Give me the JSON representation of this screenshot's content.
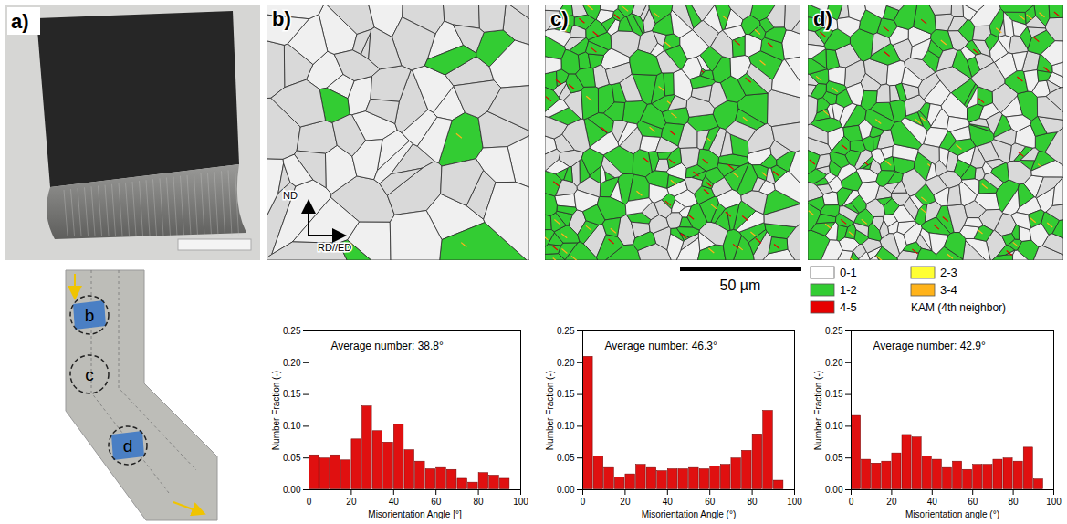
{
  "panel_labels": [
    "a)",
    "b)",
    "c)",
    "d)"
  ],
  "map_axes": {
    "vertical": "ND",
    "horizontal": "RD//ED"
  },
  "scale_bar": "50 µm",
  "kam_legend": {
    "title": "KAM (4th neighbor)",
    "entries": [
      {
        "label": "0-1",
        "color": "#ffffff"
      },
      {
        "label": "2-3",
        "color": "#ffff33"
      },
      {
        "label": "1-2",
        "color": "#33cc33"
      },
      {
        "label": "3-4",
        "color": "#ffb31a"
      },
      {
        "label": "4-5",
        "color": "#e60000"
      }
    ]
  },
  "schematic": {
    "locations": [
      "b",
      "c",
      "d"
    ]
  },
  "chart_data": [
    {
      "type": "histogram",
      "annotation": "Average number: 38.8°",
      "x_label": "Misorientation Angle [°]",
      "y_label": "Number Fraction (-)",
      "bins": [
        0,
        5,
        10,
        15,
        20,
        25,
        30,
        35,
        40,
        45,
        50,
        55,
        60,
        65,
        70,
        75,
        80,
        85,
        90,
        95
      ],
      "values": [
        0.055,
        0.05,
        0.055,
        0.047,
        0.08,
        0.132,
        0.093,
        0.075,
        0.103,
        0.063,
        0.045,
        0.033,
        0.035,
        0.032,
        0.018,
        0.012,
        0.027,
        0.023,
        0.018
      ],
      "color": "#e01010",
      "xlim": [
        0,
        100
      ],
      "xticks": [
        0,
        20,
        40,
        60,
        80,
        100
      ],
      "ylim": [
        0,
        0.25
      ],
      "yticks": [
        {
          "value": 0,
          "label": "0.00"
        },
        {
          "value": 0.05,
          "label": "0.05"
        },
        {
          "value": 0.1,
          "label": "0.10"
        },
        {
          "value": 0.15,
          "label": "0.15"
        },
        {
          "value": 0.2,
          "label": "0.20"
        },
        {
          "value": 0.25,
          "label": "0.25"
        }
      ]
    },
    {
      "type": "histogram",
      "annotation": "Average number: 46.3°",
      "x_label": "Misorientation Angle (°)",
      "y_label": "Number Fraction (-)",
      "bins": [
        0,
        5,
        10,
        15,
        20,
        25,
        30,
        35,
        40,
        45,
        50,
        55,
        60,
        65,
        70,
        75,
        80,
        85,
        90,
        95
      ],
      "values": [
        0.21,
        0.053,
        0.035,
        0.02,
        0.025,
        0.04,
        0.035,
        0.03,
        0.033,
        0.033,
        0.035,
        0.033,
        0.037,
        0.04,
        0.05,
        0.062,
        0.088,
        0.125,
        0.015
      ],
      "color": "#e01010",
      "xlim": [
        0,
        100
      ],
      "xticks": [
        0,
        20,
        40,
        60,
        80,
        100
      ],
      "ylim": [
        0,
        0.25
      ],
      "yticks": [
        {
          "value": 0,
          "label": "0.00"
        },
        {
          "value": 0.05,
          "label": "0.05"
        },
        {
          "value": 0.1,
          "label": "0.10"
        },
        {
          "value": 0.15,
          "label": "0.15"
        },
        {
          "value": 0.2,
          "label": "0.20"
        },
        {
          "value": 0.25,
          "label": "0.25"
        }
      ]
    },
    {
      "type": "histogram",
      "annotation": "Average number: 42.9°",
      "x_label": "Misorientation angle (°)",
      "y_label": "Number Fraction (-)",
      "bins": [
        0,
        5,
        10,
        15,
        20,
        25,
        30,
        35,
        40,
        45,
        50,
        55,
        60,
        65,
        70,
        75,
        80,
        85,
        90,
        95
      ],
      "values": [
        0.117,
        0.048,
        0.042,
        0.045,
        0.058,
        0.087,
        0.083,
        0.053,
        0.048,
        0.035,
        0.045,
        0.032,
        0.04,
        0.04,
        0.048,
        0.05,
        0.045,
        0.067,
        0.017
      ],
      "color": "#e01010",
      "xlim": [
        0,
        100
      ],
      "xticks": [
        0,
        20,
        40,
        60,
        80,
        100
      ],
      "ylim": [
        0,
        0.25
      ],
      "yticks": [
        {
          "value": 0,
          "label": "0.00"
        },
        {
          "value": 0.05,
          "label": "0.05"
        },
        {
          "value": 0.1,
          "label": "0.10"
        },
        {
          "value": 0.15,
          "label": "0.15"
        },
        {
          "value": 0.2,
          "label": "0.20"
        },
        {
          "value": 0.25,
          "label": "0.25"
        }
      ]
    }
  ]
}
